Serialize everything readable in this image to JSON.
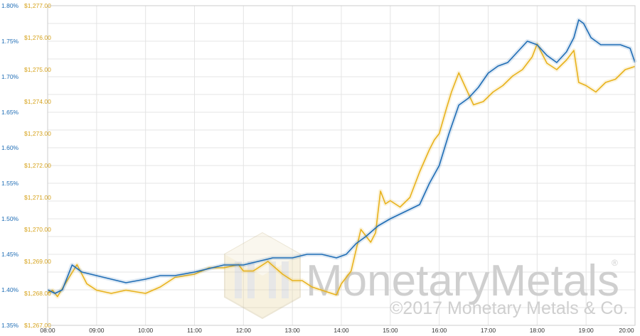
{
  "chart_data": {
    "type": "line",
    "title": "",
    "xlabel": "",
    "ylabel": "",
    "grid": true,
    "x_ticks": [
      "08:00",
      "09:00",
      "10:00",
      "11:00",
      "12:00",
      "13:00",
      "14:00",
      "15:00",
      "16:00",
      "17:00",
      "18:00",
      "19:00",
      "20:00"
    ],
    "y_left_blue": {
      "ticks": [
        "1.35%",
        "1.40%",
        "1.45%",
        "1.50%",
        "1.55%",
        "1.60%",
        "1.65%",
        "1.70%",
        "1.75%",
        "1.80%"
      ],
      "ylim": [
        1.35,
        1.8
      ],
      "unit": "%"
    },
    "y_left_gold": {
      "ticks": [
        "$1,267.00",
        "$1,268.00",
        "$1,269.00",
        "$1,270.00",
        "$1,271.00",
        "$1,272.00",
        "$1,273.00",
        "$1,274.00",
        "$1,275.00",
        "$1,276.00",
        "$1,277.00"
      ],
      "ylim": [
        1267,
        1277
      ],
      "unit": "$"
    },
    "x_range_hours": [
      8,
      20
    ],
    "series": [
      {
        "color": "#1f6db5",
        "axis": "blue",
        "x_hours": [
          8.0,
          8.15,
          8.3,
          8.5,
          8.7,
          9.0,
          9.3,
          9.6,
          10.0,
          10.3,
          10.6,
          11.0,
          11.3,
          11.6,
          12.0,
          12.3,
          12.6,
          13.0,
          13.3,
          13.6,
          13.9,
          14.1,
          14.3,
          14.5,
          14.75,
          15.0,
          15.3,
          15.6,
          15.8,
          16.0,
          16.2,
          16.4,
          16.6,
          16.8,
          17.0,
          17.2,
          17.4,
          17.6,
          17.8,
          18.0,
          18.2,
          18.4,
          18.6,
          18.75,
          18.85,
          18.95,
          19.1,
          19.3,
          19.5,
          19.7,
          19.9,
          20.0
        ],
        "values": [
          1.4,
          1.395,
          1.4,
          1.435,
          1.425,
          1.42,
          1.415,
          1.41,
          1.415,
          1.42,
          1.42,
          1.425,
          1.43,
          1.435,
          1.435,
          1.44,
          1.445,
          1.445,
          1.45,
          1.45,
          1.445,
          1.45,
          1.465,
          1.475,
          1.49,
          1.5,
          1.51,
          1.52,
          1.55,
          1.575,
          1.62,
          1.66,
          1.67,
          1.685,
          1.705,
          1.715,
          1.72,
          1.735,
          1.75,
          1.745,
          1.73,
          1.72,
          1.735,
          1.755,
          1.78,
          1.775,
          1.755,
          1.745,
          1.745,
          1.745,
          1.74,
          1.72
        ]
      },
      {
        "color": "#e8b21c",
        "axis": "gold",
        "x_hours": [
          8.0,
          8.1,
          8.2,
          8.4,
          8.6,
          8.8,
          9.0,
          9.3,
          9.6,
          10.0,
          10.3,
          10.6,
          11.0,
          11.3,
          11.6,
          11.9,
          12.0,
          12.2,
          12.5,
          12.8,
          13.0,
          13.2,
          13.4,
          13.6,
          13.8,
          13.9,
          14.0,
          14.2,
          14.4,
          14.6,
          14.7,
          14.8,
          14.9,
          15.0,
          15.2,
          15.4,
          15.6,
          15.8,
          15.9,
          16.0,
          16.15,
          16.25,
          16.4,
          16.55,
          16.7,
          16.9,
          17.1,
          17.3,
          17.5,
          17.7,
          17.9,
          18.0,
          18.2,
          18.4,
          18.6,
          18.75,
          18.85,
          19.0,
          19.2,
          19.4,
          19.6,
          19.8,
          20.0
        ],
        "values": [
          1268.0,
          1268.1,
          1267.9,
          1268.4,
          1268.9,
          1268.3,
          1268.1,
          1268.0,
          1268.1,
          1268.0,
          1268.2,
          1268.5,
          1268.6,
          1268.8,
          1268.8,
          1268.9,
          1268.7,
          1268.7,
          1269.0,
          1268.6,
          1268.4,
          1268.4,
          1268.2,
          1268.1,
          1268.0,
          1267.95,
          1268.3,
          1268.7,
          1270.0,
          1269.6,
          1269.9,
          1271.2,
          1270.8,
          1270.9,
          1270.7,
          1271.0,
          1271.8,
          1272.5,
          1272.8,
          1273.0,
          1273.8,
          1274.3,
          1274.9,
          1274.4,
          1273.9,
          1274.0,
          1274.3,
          1274.5,
          1274.8,
          1275.0,
          1275.4,
          1275.8,
          1275.2,
          1275.0,
          1275.3,
          1275.6,
          1274.6,
          1274.5,
          1274.3,
          1274.6,
          1274.7,
          1275.0,
          1275.1
        ]
      }
    ]
  },
  "watermark": {
    "brand": "MonetaryMetals",
    "registered_mark": "®",
    "copyright": "©2017 Monetary Metals & Co."
  },
  "colors": {
    "blue": "#1f6db5",
    "gold": "#e8b21c",
    "grid": "#e4e4e4",
    "watermark": "#cfcfcf"
  }
}
